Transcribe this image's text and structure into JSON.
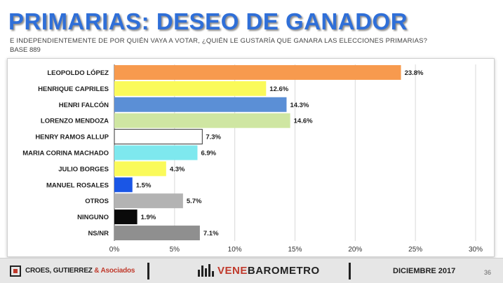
{
  "header": {
    "title": "PRIMARIAS: DESEO DE GANADOR",
    "question": "E INDEPENDIENTEMENTE DE POR QUIÉN VAYA A VOTAR, ¿QUIÉN LE GUSTARÍA QUE GANARA LAS ELECCIONES PRIMARIAS?",
    "base": "BASE 889"
  },
  "chart_data": {
    "type": "bar",
    "orientation": "horizontal",
    "categories": [
      "LEOPOLDO LÓPEZ",
      "HENRIQUE CAPRILES",
      "HENRI FALCÓN",
      "LORENZO MENDOZA",
      "HENRY RAMOS ALLUP",
      "MARIA CORINA MACHADO",
      "JULIO BORGES",
      "MANUEL ROSALES",
      "OTROS",
      "NINGUNO",
      "NS/NR"
    ],
    "values": [
      23.8,
      12.6,
      14.3,
      14.6,
      7.3,
      6.9,
      4.3,
      1.5,
      5.7,
      1.9,
      7.1
    ],
    "value_labels": [
      "23.8%",
      "12.6%",
      "14.3%",
      "14.6%",
      "7.3%",
      "6.9%",
      "4.3%",
      "1.5%",
      "5.7%",
      "1.9%",
      "7.1%"
    ],
    "colors": [
      "#f79a4e",
      "#fafa5a",
      "#5b8fd6",
      "#cfe6a2",
      "#ffffff",
      "#7ee8ee",
      "#fafa5a",
      "#1a56e6",
      "#b3b3b3",
      "#0a0a0a",
      "#8f8f8f"
    ],
    "xlim": [
      0,
      30
    ],
    "xticks": [
      0,
      5,
      10,
      15,
      20,
      25,
      30
    ],
    "xtick_labels": [
      "0%",
      "5%",
      "10%",
      "15%",
      "20%",
      "25%",
      "30%"
    ],
    "grid": true
  },
  "footer": {
    "company_main": "CROES, GUTIERREZ ",
    "company_amp": "& Asociados",
    "brand_a": "VENE",
    "brand_b": "BAROMETRO",
    "date": "DICIEMBRE 2017",
    "page": "36"
  }
}
